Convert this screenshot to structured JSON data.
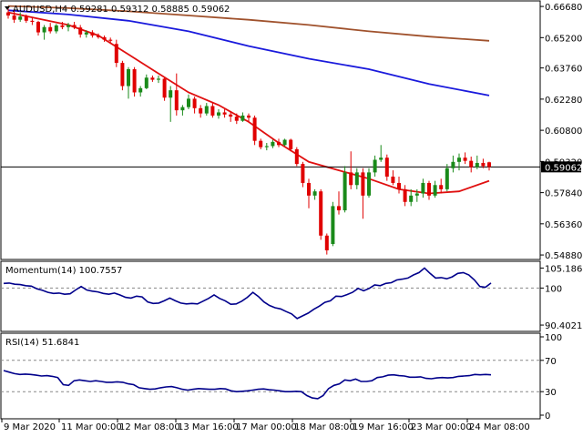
{
  "header": {
    "symbol_line": "AUDUSD,H4  0.59281 0.59312 0.58885 0.59062"
  },
  "colors": {
    "bull": "#1a8a1a",
    "bear": "#e00000",
    "ma_fast": "#e01010",
    "ma_mid": "#1a1adc",
    "ma_slow": "#a0522d",
    "indicator": "#00008b"
  },
  "chart_data": [
    {
      "type": "candlestick",
      "title": "AUDUSD,H4",
      "ohlc_header": {
        "open": "0.59281",
        "high": "0.59312",
        "low": "0.58885",
        "close": "0.59062"
      },
      "ylim": [
        0.5471,
        0.669
      ],
      "y_ticks": [
        "0.66680",
        "0.65200",
        "0.63760",
        "0.62280",
        "0.60800",
        "0.59320",
        "0.57840",
        "0.56360",
        "0.54880"
      ],
      "current_price": "0.59062",
      "candles": [
        {
          "o": 0.664,
          "h": 0.666,
          "l": 0.661,
          "c": 0.6625
        },
        {
          "o": 0.6625,
          "h": 0.665,
          "l": 0.659,
          "c": 0.6605
        },
        {
          "o": 0.6605,
          "h": 0.664,
          "l": 0.6595,
          "c": 0.662
        },
        {
          "o": 0.662,
          "h": 0.663,
          "l": 0.659,
          "c": 0.66
        },
        {
          "o": 0.66,
          "h": 0.6615,
          "l": 0.658,
          "c": 0.6595
        },
        {
          "o": 0.6595,
          "h": 0.66,
          "l": 0.653,
          "c": 0.6545
        },
        {
          "o": 0.6545,
          "h": 0.658,
          "l": 0.651,
          "c": 0.657
        },
        {
          "o": 0.657,
          "h": 0.659,
          "l": 0.654,
          "c": 0.655
        },
        {
          "o": 0.655,
          "h": 0.6585,
          "l": 0.654,
          "c": 0.6578
        },
        {
          "o": 0.6578,
          "h": 0.6595,
          "l": 0.656,
          "c": 0.657
        },
        {
          "o": 0.657,
          "h": 0.659,
          "l": 0.655,
          "c": 0.658
        },
        {
          "o": 0.658,
          "h": 0.6595,
          "l": 0.656,
          "c": 0.6568
        },
        {
          "o": 0.6568,
          "h": 0.658,
          "l": 0.652,
          "c": 0.6535
        },
        {
          "o": 0.6535,
          "h": 0.6555,
          "l": 0.652,
          "c": 0.6545
        },
        {
          "o": 0.6545,
          "h": 0.6555,
          "l": 0.652,
          "c": 0.653
        },
        {
          "o": 0.653,
          "h": 0.654,
          "l": 0.6515,
          "c": 0.6522
        },
        {
          "o": 0.6522,
          "h": 0.653,
          "l": 0.65,
          "c": 0.651
        },
        {
          "o": 0.651,
          "h": 0.652,
          "l": 0.6495,
          "c": 0.6505
        },
        {
          "o": 0.649,
          "h": 0.651,
          "l": 0.638,
          "c": 0.64
        },
        {
          "o": 0.64,
          "h": 0.641,
          "l": 0.627,
          "c": 0.629
        },
        {
          "o": 0.629,
          "h": 0.638,
          "l": 0.623,
          "c": 0.637
        },
        {
          "o": 0.637,
          "h": 0.638,
          "l": 0.624,
          "c": 0.626
        },
        {
          "o": 0.626,
          "h": 0.629,
          "l": 0.624,
          "c": 0.628
        },
        {
          "o": 0.628,
          "h": 0.6345,
          "l": 0.6275,
          "c": 0.633
        },
        {
          "o": 0.633,
          "h": 0.634,
          "l": 0.631,
          "c": 0.632
        },
        {
          "o": 0.632,
          "h": 0.634,
          "l": 0.6305,
          "c": 0.6325
        },
        {
          "o": 0.6325,
          "h": 0.633,
          "l": 0.622,
          "c": 0.6235
        },
        {
          "o": 0.6235,
          "h": 0.629,
          "l": 0.612,
          "c": 0.627
        },
        {
          "o": 0.627,
          "h": 0.635,
          "l": 0.615,
          "c": 0.6175
        },
        {
          "o": 0.6175,
          "h": 0.62,
          "l": 0.615,
          "c": 0.619
        },
        {
          "o": 0.619,
          "h": 0.625,
          "l": 0.618,
          "c": 0.623
        },
        {
          "o": 0.623,
          "h": 0.624,
          "l": 0.616,
          "c": 0.6185
        },
        {
          "o": 0.6185,
          "h": 0.62,
          "l": 0.614,
          "c": 0.616
        },
        {
          "o": 0.616,
          "h": 0.621,
          "l": 0.615,
          "c": 0.6195
        },
        {
          "o": 0.6195,
          "h": 0.621,
          "l": 0.614,
          "c": 0.615
        },
        {
          "o": 0.615,
          "h": 0.618,
          "l": 0.6135,
          "c": 0.6165
        },
        {
          "o": 0.6165,
          "h": 0.618,
          "l": 0.614,
          "c": 0.6155
        },
        {
          "o": 0.6155,
          "h": 0.617,
          "l": 0.612,
          "c": 0.6145
        },
        {
          "o": 0.6145,
          "h": 0.616,
          "l": 0.611,
          "c": 0.6125
        },
        {
          "o": 0.6125,
          "h": 0.6165,
          "l": 0.612,
          "c": 0.615
        },
        {
          "o": 0.615,
          "h": 0.616,
          "l": 0.612,
          "c": 0.614
        },
        {
          "o": 0.614,
          "h": 0.615,
          "l": 0.601,
          "c": 0.603
        },
        {
          "o": 0.603,
          "h": 0.604,
          "l": 0.599,
          "c": 0.6
        },
        {
          "o": 0.6,
          "h": 0.602,
          "l": 0.5985,
          "c": 0.6005
        },
        {
          "o": 0.6005,
          "h": 0.6035,
          "l": 0.5995,
          "c": 0.6025
        },
        {
          "o": 0.6025,
          "h": 0.604,
          "l": 0.6,
          "c": 0.601
        },
        {
          "o": 0.601,
          "h": 0.604,
          "l": 0.6005,
          "c": 0.6035
        },
        {
          "o": 0.6035,
          "h": 0.604,
          "l": 0.598,
          "c": 0.599
        },
        {
          "o": 0.599,
          "h": 0.6,
          "l": 0.591,
          "c": 0.592
        },
        {
          "o": 0.592,
          "h": 0.593,
          "l": 0.581,
          "c": 0.583
        },
        {
          "o": 0.583,
          "h": 0.585,
          "l": 0.571,
          "c": 0.577
        },
        {
          "o": 0.577,
          "h": 0.58,
          "l": 0.575,
          "c": 0.579
        },
        {
          "o": 0.579,
          "h": 0.58,
          "l": 0.556,
          "c": 0.558
        },
        {
          "o": 0.558,
          "h": 0.559,
          "l": 0.549,
          "c": 0.551
        },
        {
          "o": 0.554,
          "h": 0.574,
          "l": 0.553,
          "c": 0.572
        },
        {
          "o": 0.572,
          "h": 0.579,
          "l": 0.568,
          "c": 0.57
        },
        {
          "o": 0.57,
          "h": 0.591,
          "l": 0.569,
          "c": 0.588
        },
        {
          "o": 0.588,
          "h": 0.598,
          "l": 0.58,
          "c": 0.582
        },
        {
          "o": 0.582,
          "h": 0.59,
          "l": 0.58,
          "c": 0.588
        },
        {
          "o": 0.588,
          "h": 0.59,
          "l": 0.566,
          "c": 0.577
        },
        {
          "o": 0.577,
          "h": 0.59,
          "l": 0.576,
          "c": 0.588
        },
        {
          "o": 0.588,
          "h": 0.596,
          "l": 0.586,
          "c": 0.594
        },
        {
          "o": 0.594,
          "h": 0.601,
          "l": 0.593,
          "c": 0.595
        },
        {
          "o": 0.595,
          "h": 0.5965,
          "l": 0.584,
          "c": 0.586
        },
        {
          "o": 0.586,
          "h": 0.589,
          "l": 0.582,
          "c": 0.583
        },
        {
          "o": 0.583,
          "h": 0.586,
          "l": 0.578,
          "c": 0.58
        },
        {
          "o": 0.58,
          "h": 0.582,
          "l": 0.572,
          "c": 0.574
        },
        {
          "o": 0.574,
          "h": 0.58,
          "l": 0.572,
          "c": 0.577
        },
        {
          "o": 0.577,
          "h": 0.58,
          "l": 0.574,
          "c": 0.578
        },
        {
          "o": 0.578,
          "h": 0.585,
          "l": 0.576,
          "c": 0.583
        },
        {
          "o": 0.583,
          "h": 0.584,
          "l": 0.575,
          "c": 0.577
        },
        {
          "o": 0.577,
          "h": 0.584,
          "l": 0.576,
          "c": 0.582
        },
        {
          "o": 0.582,
          "h": 0.585,
          "l": 0.578,
          "c": 0.58
        },
        {
          "o": 0.58,
          "h": 0.592,
          "l": 0.579,
          "c": 0.59
        },
        {
          "o": 0.59,
          "h": 0.596,
          "l": 0.588,
          "c": 0.593
        },
        {
          "o": 0.593,
          "h": 0.597,
          "l": 0.589,
          "c": 0.595
        },
        {
          "o": 0.595,
          "h": 0.5975,
          "l": 0.592,
          "c": 0.5935
        },
        {
          "o": 0.5935,
          "h": 0.5955,
          "l": 0.588,
          "c": 0.5905
        },
        {
          "o": 0.5905,
          "h": 0.596,
          "l": 0.5895,
          "c": 0.5925
        },
        {
          "o": 0.5925,
          "h": 0.5945,
          "l": 0.59,
          "c": 0.591
        },
        {
          "o": 0.5928,
          "h": 0.5931,
          "l": 0.5889,
          "c": 0.5906
        }
      ],
      "moving_averages": [
        {
          "color_key": "ma_slow",
          "points": [
            [
              0,
              0.667
            ],
            [
              10,
              0.666
            ],
            [
              20,
              0.6645
            ],
            [
              30,
              0.6625
            ],
            [
              40,
              0.6605
            ],
            [
              50,
              0.658
            ],
            [
              60,
              0.655
            ],
            [
              70,
              0.6525
            ],
            [
              80,
              0.6505
            ]
          ]
        },
        {
          "color_key": "ma_mid",
          "points": [
            [
              0,
              0.665
            ],
            [
              10,
              0.663
            ],
            [
              20,
              0.66
            ],
            [
              30,
              0.655
            ],
            [
              40,
              0.648
            ],
            [
              50,
              0.642
            ],
            [
              60,
              0.637
            ],
            [
              70,
              0.63
            ],
            [
              80,
              0.6245
            ]
          ]
        },
        {
          "color_key": "ma_fast",
          "points": [
            [
              0,
              0.664
            ],
            [
              5,
              0.661
            ],
            [
              10,
              0.658
            ],
            [
              15,
              0.653
            ],
            [
              20,
              0.644
            ],
            [
              25,
              0.635
            ],
            [
              30,
              0.626
            ],
            [
              35,
              0.62
            ],
            [
              40,
              0.612
            ],
            [
              45,
              0.602
            ],
            [
              50,
              0.593
            ],
            [
              55,
              0.589
            ],
            [
              60,
              0.585
            ],
            [
              65,
              0.58
            ],
            [
              70,
              0.578
            ],
            [
              75,
              0.579
            ],
            [
              80,
              0.584
            ]
          ]
        }
      ],
      "x_tick_labels": [
        "9 Mar 2020",
        "11 Mar 00:00",
        "12 Mar 08:00",
        "13 Mar 16:00",
        "17 Mar 00:00",
        "18 Mar 08:00",
        "19 Mar 16:00",
        "23 Mar 00:00",
        "24 Mar 08:00"
      ]
    },
    {
      "type": "line",
      "title": "Momentum(14) 100.7557",
      "ylim": [
        89.0,
        106.7
      ],
      "y_ticks": [
        "105.1863",
        "100",
        "90.4021"
      ],
      "series": [
        {
          "values": [
            101.2,
            101.3,
            101.0,
            100.9,
            100.6,
            100.5,
            99.8,
            99.4,
            98.9,
            98.6,
            98.7,
            98.4,
            98.5,
            99.5,
            100.4,
            99.5,
            99.2,
            99.0,
            98.6,
            98.4,
            98.7,
            98.2,
            97.6,
            97.4,
            97.9,
            97.7,
            96.4,
            96.0,
            96.1,
            96.7,
            97.4,
            96.7,
            96.1,
            95.9,
            96.0,
            95.9,
            96.6,
            97.3,
            98.2,
            97.3,
            96.7,
            95.8,
            95.9,
            96.6,
            97.6,
            98.9,
            97.8,
            96.4,
            95.5,
            94.9,
            94.6,
            93.9,
            93.3,
            92.1,
            92.8,
            93.5,
            94.5,
            95.3,
            96.3,
            96.7,
            97.9,
            97.8,
            98.3,
            98.9,
            99.9,
            99.3,
            99.9,
            100.8,
            100.6,
            101.2,
            101.4,
            102.1,
            102.3,
            102.6,
            103.4,
            104.0,
            105.2,
            103.8,
            102.6,
            102.7,
            102.4,
            102.9,
            103.8,
            104.0,
            103.4,
            102.1,
            100.4,
            100.2,
            101.3
          ]
        }
      ]
    },
    {
      "type": "line",
      "title": "RSI(14) 51.6841",
      "ylim": [
        0,
        100
      ],
      "y_ticks": [
        "100",
        "70",
        "30",
        "0"
      ],
      "series": [
        {
          "values": [
            57.0,
            55.0,
            53.0,
            52.0,
            52.5,
            52.0,
            51.0,
            50.0,
            50.5,
            49.5,
            48.0,
            39.0,
            38.0,
            44.0,
            45.0,
            44.0,
            43.0,
            44.0,
            43.0,
            42.0,
            42.0,
            42.5,
            42.0,
            40.0,
            39.0,
            35.0,
            34.0,
            33.0,
            33.5,
            35.0,
            36.0,
            36.5,
            35.0,
            33.0,
            32.0,
            33.0,
            34.0,
            33.5,
            33.0,
            33.0,
            34.0,
            33.5,
            31.0,
            30.0,
            30.5,
            31.0,
            32.0,
            33.0,
            33.5,
            32.5,
            32.0,
            31.0,
            30.0,
            30.0,
            30.5,
            30.0,
            25.0,
            22.0,
            21.0,
            25.0,
            34.0,
            38.0,
            40.0,
            45.0,
            44.0,
            46.0,
            43.0,
            43.0,
            44.0,
            48.0,
            49.0,
            51.0,
            51.5,
            50.5,
            50.0,
            48.5,
            48.5,
            49.0,
            47.0,
            46.5,
            47.5,
            48.0,
            47.5,
            48.0,
            49.5,
            50.0,
            50.5,
            52.0,
            51.5,
            52.0,
            51.5
          ]
        }
      ]
    }
  ]
}
